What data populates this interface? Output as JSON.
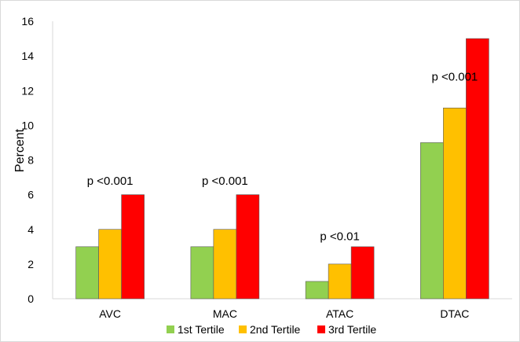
{
  "chart_data": {
    "type": "bar",
    "title": "",
    "xlabel": "",
    "ylabel": "Percent",
    "ylim": [
      0,
      16
    ],
    "yticks": [
      0,
      2,
      4,
      6,
      8,
      10,
      12,
      14,
      16
    ],
    "categories": [
      "AVC",
      "MAC",
      "ATAC",
      "DTAC"
    ],
    "series": [
      {
        "name": "1st Tertile",
        "color": "#92d050",
        "values": [
          3,
          3,
          1,
          9
        ]
      },
      {
        "name": "2nd Tertile",
        "color": "#ffc000",
        "values": [
          4,
          4,
          2,
          11
        ]
      },
      {
        "name": "3rd Tertile",
        "color": "#ff0000",
        "values": [
          6,
          6,
          3,
          15
        ]
      }
    ],
    "annotations": [
      {
        "category": "AVC",
        "text": "p <0.001",
        "y": 6.8
      },
      {
        "category": "MAC",
        "text": "p <0.001",
        "y": 6.8
      },
      {
        "category": "ATAC",
        "text": "p <0.01",
        "y": 3.6
      },
      {
        "category": "DTAC",
        "text": "p <0.001",
        "y": 12.8
      }
    ],
    "legend_position": "bottom",
    "grid": false
  }
}
